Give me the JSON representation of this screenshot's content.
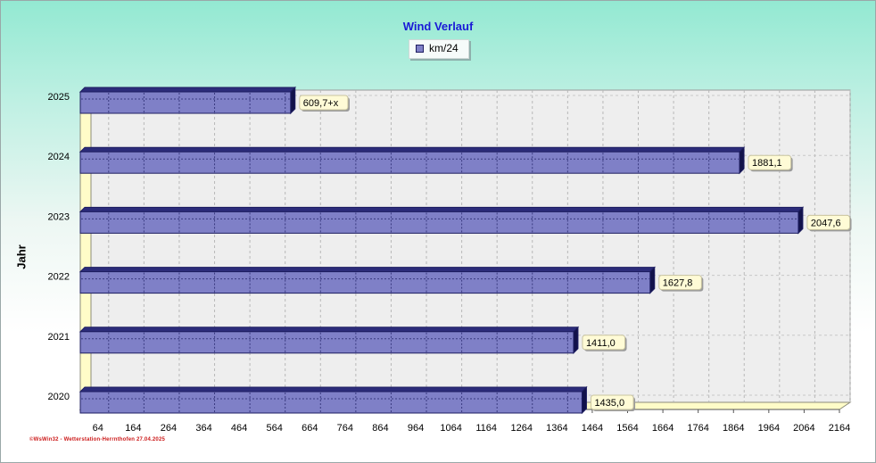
{
  "title": "Wind Verlauf",
  "legend": {
    "label": "km/24"
  },
  "footer": "©WsWin32 - Wetterstation-Herrnthofen 27.04.2025",
  "chart_data": {
    "type": "bar",
    "orientation": "horizontal",
    "title": "Wind Verlauf",
    "ylabel": "Jahr",
    "xlabel": "",
    "categories": [
      "2025",
      "2024",
      "2023",
      "2022",
      "2021",
      "2020"
    ],
    "series": [
      {
        "name": "km/24",
        "values": [
          609.7,
          1881.1,
          2047.6,
          1627.8,
          1411.0,
          1435.0
        ],
        "value_labels": [
          "609,7+x",
          "1881,1",
          "2047,6",
          "1627,8",
          "1411,0",
          "1435,0"
        ]
      }
    ],
    "xticks": [
      64,
      164,
      264,
      364,
      464,
      564,
      664,
      764,
      864,
      964,
      1064,
      1164,
      1264,
      1364,
      1464,
      1564,
      1664,
      1764,
      1864,
      1964,
      2064,
      2164
    ],
    "xlim": [
      14,
      2164
    ],
    "grid": true,
    "legend_position": "top-center",
    "bar_color": "#7f80c7",
    "bar_edge_color": "#1d1d60",
    "label_box_color": "#fffbd6"
  }
}
